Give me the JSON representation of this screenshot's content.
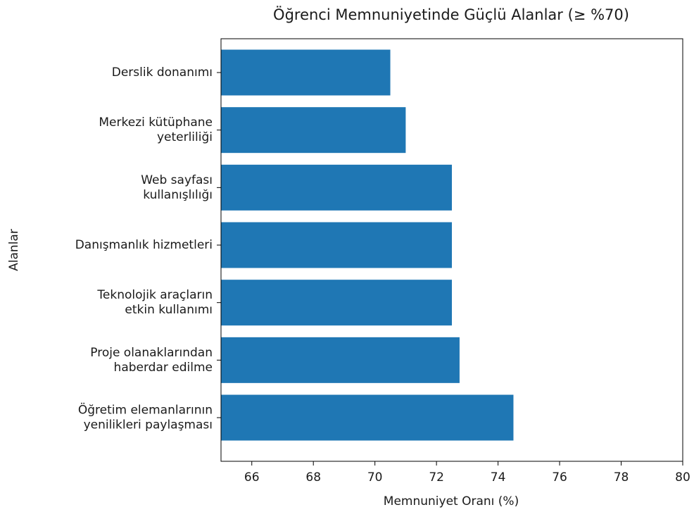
{
  "chart_data": {
    "type": "barh",
    "title": "Öğrenci Memnuniyetinde Güçlü Alanlar (≥ %70)",
    "xlabel": "Memnuniyet Oranı (%)",
    "ylabel": "Alanlar",
    "categories": [
      "Derslik donanımı",
      "Merkezi kütüphane\nyeterliliği",
      "Web sayfası\nkullanışlılığı",
      "Danışmanlık hizmetleri",
      "Teknolojik araçların\netkin kullanımı",
      "Proje olanaklarından\nhaberdar edilme",
      "Öğretim elemanlarının\nyenilikleri paylaşması"
    ],
    "values": [
      70.5,
      71,
      72.5,
      72.5,
      72.5,
      72.75,
      74.5
    ],
    "color": "#1f77b4",
    "xlim": [
      65,
      80
    ],
    "xticks": [
      66,
      68,
      70,
      72,
      74,
      76,
      78,
      80
    ],
    "grid": false
  }
}
